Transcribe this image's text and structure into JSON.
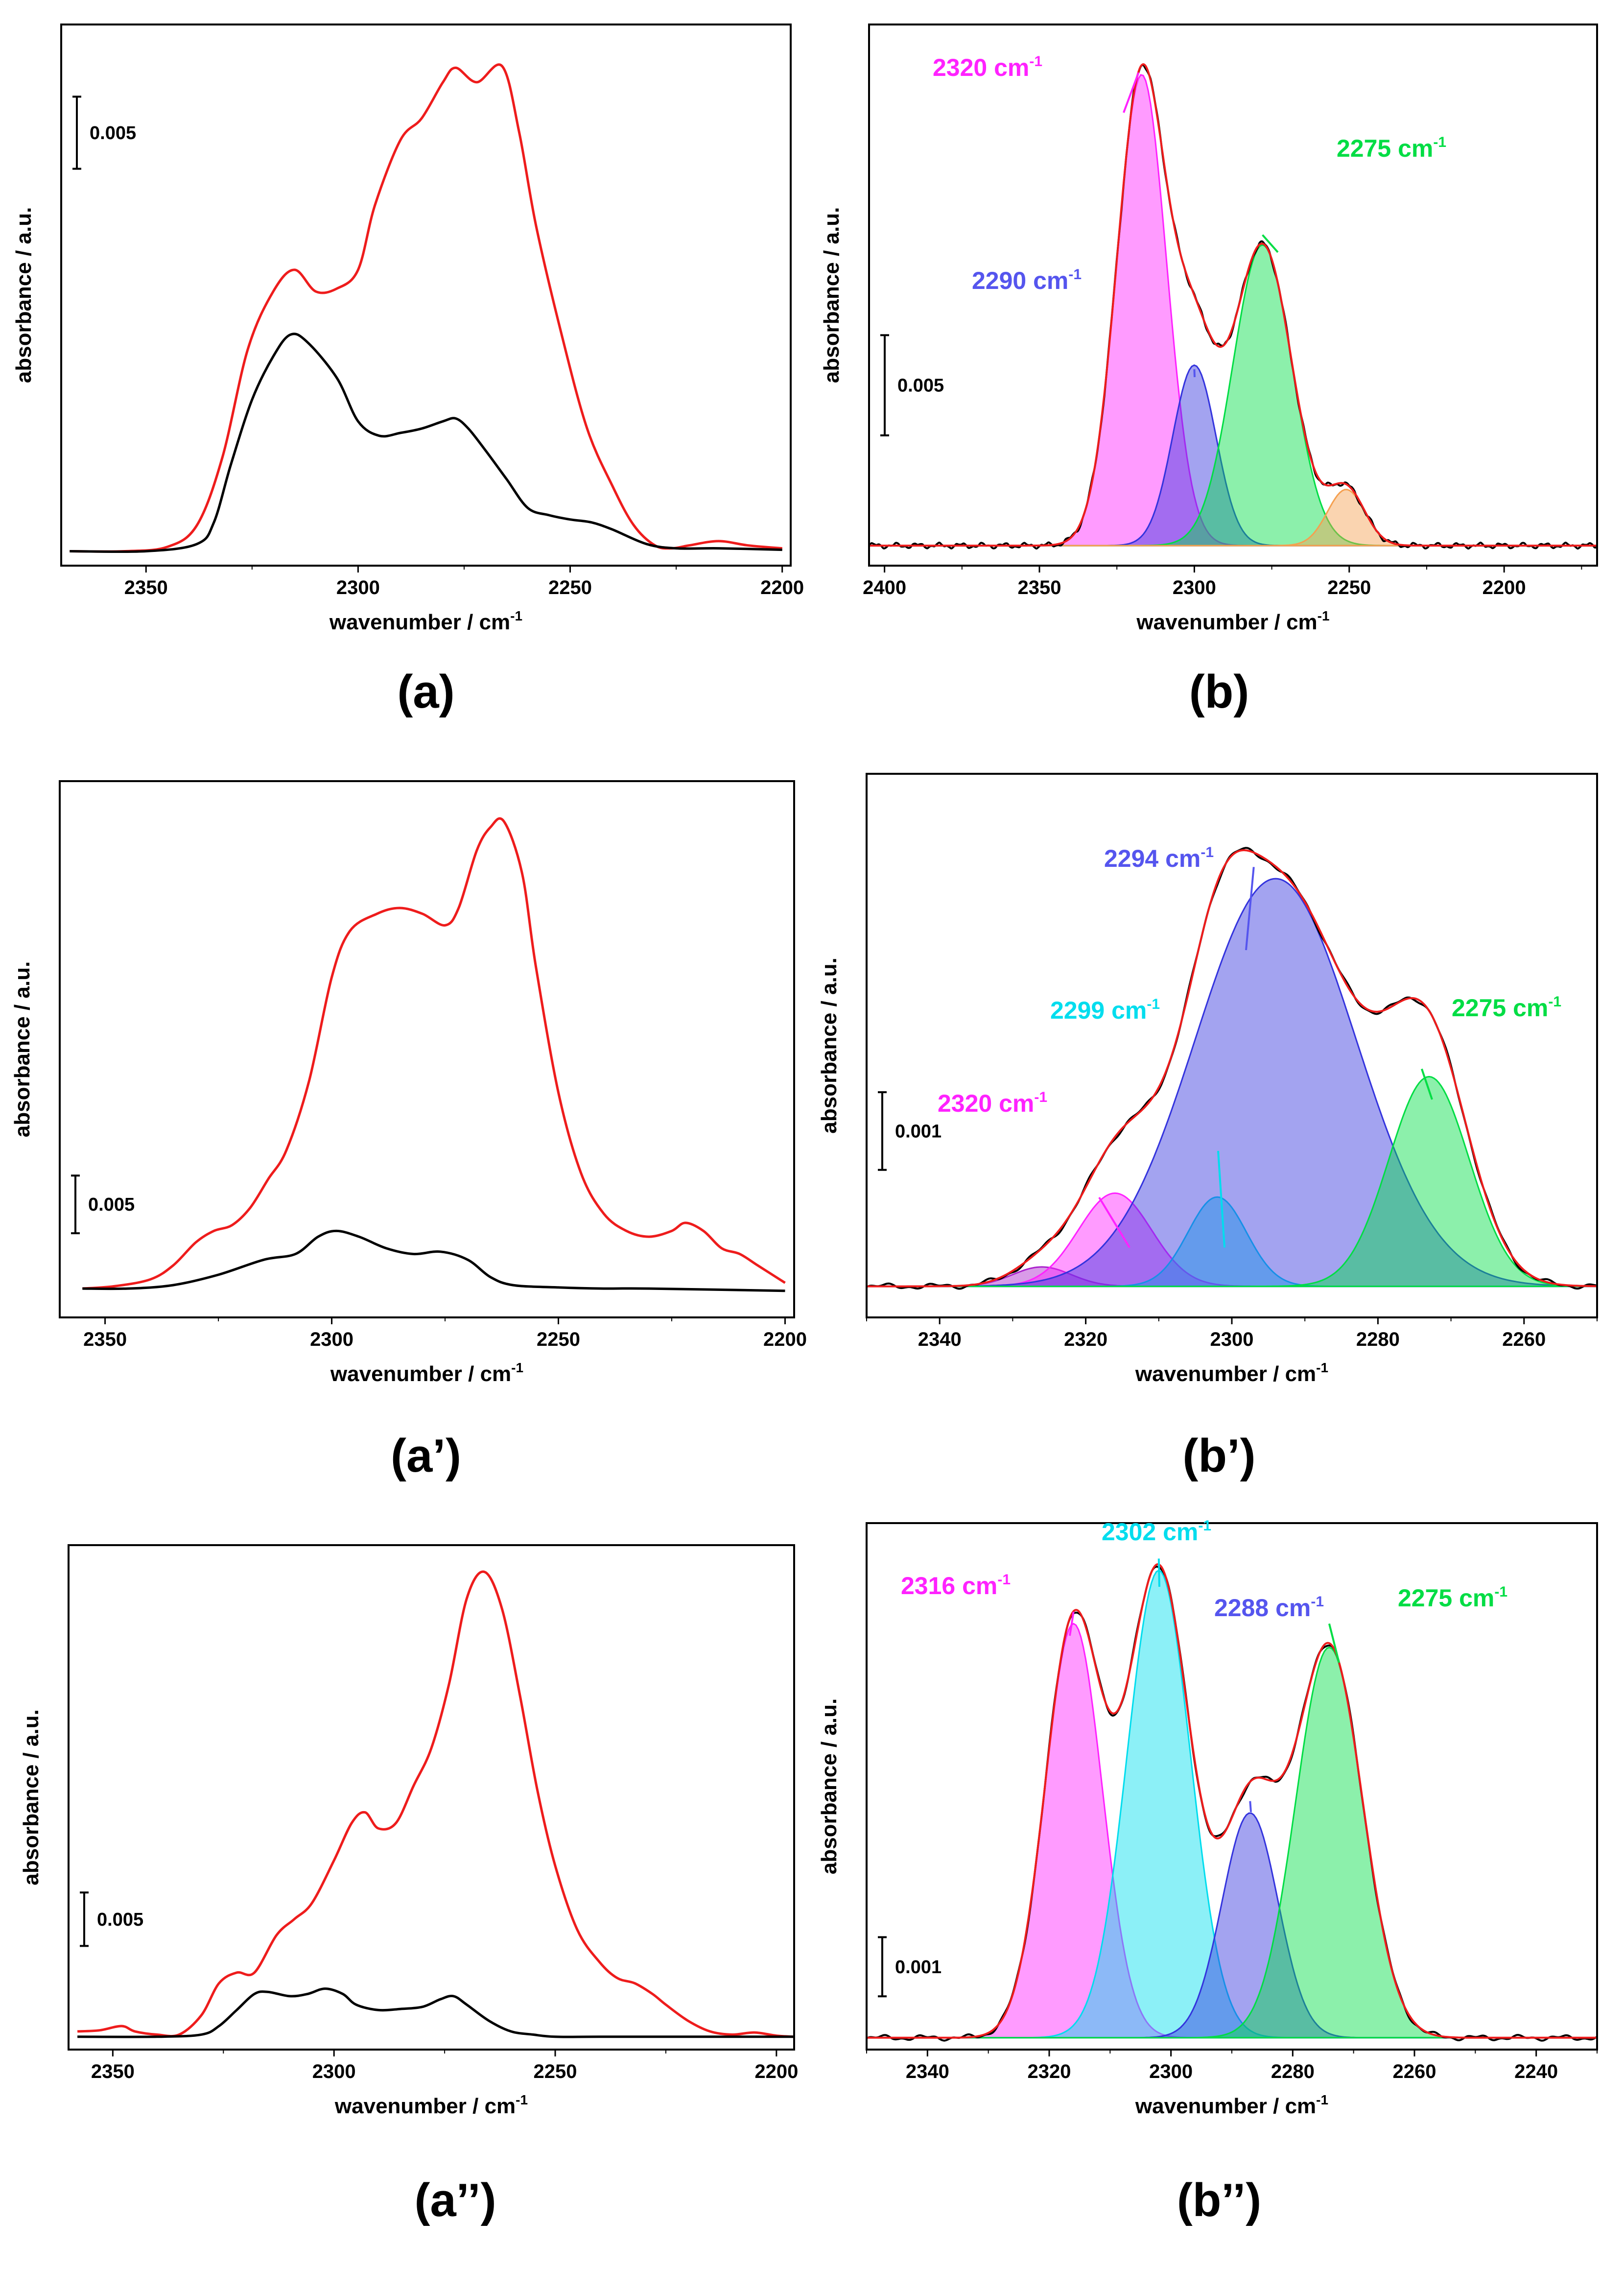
{
  "figure": {
    "colors": {
      "red": "#ee1c1c",
      "black": "#000000",
      "magenta": "#ff22ff",
      "blue": "#3333dd",
      "green": "#00dd44",
      "cyan": "#00ddee",
      "orange": "#f5a050"
    }
  },
  "chart_data": [
    {
      "id": "a",
      "type": "line",
      "label": "(a)",
      "xlabel": "wavenumber / cm",
      "xlabel_sup": "-1",
      "ylabel": "absorbance / a.u.",
      "xlim": [
        2370,
        2198
      ],
      "ylim": [
        -0.001,
        0.0365
      ],
      "xticks": [
        2350,
        2300,
        2250,
        2200
      ],
      "scale_bar": {
        "value": 0.005,
        "label": "0.005",
        "y0": 0.0265
      },
      "series": [
        {
          "name": "red",
          "color": "#ee1c1c",
          "x": [
            2368,
            2355,
            2345,
            2338,
            2332,
            2326,
            2320,
            2315,
            2310,
            2305,
            2300,
            2296,
            2290,
            2285,
            2280,
            2277,
            2272,
            2266,
            2262,
            2258,
            2252,
            2246,
            2240,
            2235,
            2230,
            2226,
            2222,
            2215,
            2208,
            2200
          ],
          "y": [
            0.0,
            0.0,
            0.0003,
            0.0018,
            0.0065,
            0.014,
            0.018,
            0.0195,
            0.018,
            0.0182,
            0.0195,
            0.024,
            0.0285,
            0.03,
            0.0325,
            0.0335,
            0.0325,
            0.0336,
            0.029,
            0.0225,
            0.015,
            0.0085,
            0.0045,
            0.0018,
            0.0004,
            0.0002,
            0.0004,
            0.0007,
            0.0004,
            0.0002
          ]
        },
        {
          "name": "black",
          "color": "#000000",
          "x": [
            2368,
            2350,
            2338,
            2334,
            2330,
            2325,
            2320,
            2316,
            2312,
            2305,
            2300,
            2295,
            2290,
            2285,
            2280,
            2277,
            2274,
            2270,
            2265,
            2260,
            2255,
            2250,
            2245,
            2240,
            2232,
            2225,
            2215,
            2200
          ],
          "y": [
            0.0,
            0.0,
            0.0005,
            0.002,
            0.006,
            0.0105,
            0.0135,
            0.015,
            0.0145,
            0.012,
            0.009,
            0.008,
            0.0082,
            0.0085,
            0.009,
            0.0092,
            0.0085,
            0.007,
            0.005,
            0.003,
            0.0025,
            0.0022,
            0.002,
            0.0015,
            0.0005,
            0.0002,
            0.0002,
            0.0001
          ]
        }
      ]
    },
    {
      "id": "b",
      "type": "area",
      "label": "(b)",
      "xlabel": "wavenumber / cm",
      "xlabel_sup": "-1",
      "ylabel": "absorbance / a.u.",
      "xlim": [
        2405,
        2170
      ],
      "ylim": [
        -0.001,
        0.026
      ],
      "xticks": [
        2400,
        2350,
        2300,
        2250,
        2200
      ],
      "scale_bar": {
        "value": 0.005,
        "label": "0.005",
        "y0": 0.0055
      },
      "components": [
        {
          "name": "2320",
          "center": 2317,
          "amplitude": 0.0235,
          "sigma": 8.0,
          "color": "#ff22ff"
        },
        {
          "name": "2290",
          "center": 2300,
          "amplitude": 0.009,
          "sigma": 7.0,
          "color": "#3333dd"
        },
        {
          "name": "2275",
          "center": 2278,
          "amplitude": 0.015,
          "sigma": 9.5,
          "color": "#00dd44"
        },
        {
          "name": "2250",
          "center": 2251,
          "amplitude": 0.0028,
          "sigma": 6.0,
          "color": "#f5a050"
        }
      ],
      "series": [
        {
          "name": "fit envelope",
          "color": "#ee1c1c"
        },
        {
          "name": "experimental",
          "color": "#000000"
        }
      ],
      "annotations": [
        {
          "text": "2320 cm",
          "sup": "-1",
          "color": "#ff22ff",
          "target_x": 2318,
          "target_y": 0.0236
        },
        {
          "text": "2290 cm",
          "sup": "-1",
          "color": "#5555ee",
          "target_x": 2300,
          "target_y": 0.0088
        },
        {
          "text": "2275 cm",
          "sup": "-1",
          "color": "#00dd44",
          "target_x": 2278,
          "target_y": 0.0155
        }
      ]
    },
    {
      "id": "a1",
      "type": "line",
      "label": "(a’)",
      "xlabel": "wavenumber / cm",
      "xlabel_sup": "-1",
      "ylabel": "absorbance / a.u.",
      "xlim": [
        2360,
        2198
      ],
      "ylim": [
        -0.0025,
        0.044
      ],
      "xticks": [
        2350,
        2300,
        2250,
        2200
      ],
      "scale_bar": {
        "value": 0.005,
        "label": "0.005",
        "y0": 0.0048
      },
      "series": [
        {
          "name": "red",
          "color": "#ee1c1c",
          "x": [
            2355,
            2348,
            2340,
            2335,
            2330,
            2326,
            2322,
            2318,
            2314,
            2310,
            2305,
            2300,
            2296,
            2290,
            2285,
            2280,
            2275,
            2272,
            2268,
            2265,
            2262,
            2258,
            2255,
            2250,
            2245,
            2240,
            2235,
            2230,
            2225,
            2222,
            2218,
            2214,
            2210,
            2206,
            2200
          ],
          "y": [
            0.0,
            0.0002,
            0.0008,
            0.002,
            0.004,
            0.005,
            0.0055,
            0.007,
            0.0095,
            0.012,
            0.018,
            0.027,
            0.031,
            0.0325,
            0.033,
            0.0325,
            0.0315,
            0.033,
            0.038,
            0.04,
            0.0405,
            0.036,
            0.028,
            0.017,
            0.01,
            0.0065,
            0.005,
            0.0045,
            0.005,
            0.0057,
            0.005,
            0.0035,
            0.003,
            0.002,
            0.0005
          ]
        },
        {
          "name": "black",
          "color": "#000000",
          "x": [
            2355,
            2345,
            2335,
            2325,
            2315,
            2308,
            2303,
            2299,
            2294,
            2288,
            2282,
            2276,
            2270,
            2265,
            2260,
            2250,
            2240,
            2230,
            2200
          ],
          "y": [
            0.0,
            0.0,
            0.0003,
            0.0012,
            0.0025,
            0.003,
            0.0045,
            0.005,
            0.0045,
            0.0035,
            0.003,
            0.0032,
            0.0025,
            0.001,
            0.0003,
            0.0001,
            0.0,
            0.0,
            -0.0002
          ]
        }
      ]
    },
    {
      "id": "b1",
      "type": "area",
      "label": "(b’)",
      "xlabel": "wavenumber / cm",
      "xlabel_sup": "-1",
      "ylabel": "absorbance / a.u.",
      "xlim": [
        2350,
        2250
      ],
      "ylim": [
        -0.0004,
        0.0066
      ],
      "xticks": [
        2340,
        2320,
        2300,
        2280,
        2260
      ],
      "scale_bar": {
        "value": 0.001,
        "label": "0.001",
        "y0": 0.0015
      },
      "components": [
        {
          "name": "2326",
          "center": 2326,
          "amplitude": 0.00025,
          "sigma": 4.0,
          "color": "#aa22cc"
        },
        {
          "name": "2320",
          "center": 2316,
          "amplitude": 0.0012,
          "sigma": 5.0,
          "color": "#ff22ff"
        },
        {
          "name": "2299",
          "center": 2302,
          "amplitude": 0.00115,
          "sigma": 4.0,
          "color": "#00ddee"
        },
        {
          "name": "2294",
          "center": 2294,
          "amplitude": 0.00525,
          "sigma": 11.0,
          "color": "#3333dd"
        },
        {
          "name": "2275",
          "center": 2273,
          "amplitude": 0.0027,
          "sigma": 5.5,
          "color": "#00dd44"
        }
      ],
      "series": [
        {
          "name": "fit envelope",
          "color": "#ee1c1c"
        },
        {
          "name": "experimental",
          "color": "#000000"
        }
      ],
      "annotations": [
        {
          "text": "2294 cm",
          "sup": "-1",
          "color": "#5555ee",
          "target_x": 2297,
          "target_y": 0.0054
        },
        {
          "text": "2299 cm",
          "sup": "-1",
          "color": "#00ddee",
          "target_x": 2301,
          "target_y": 0.0005
        },
        {
          "text": "2320 cm",
          "sup": "-1",
          "color": "#ff22ff",
          "target_x": 2314,
          "target_y": 0.0005
        },
        {
          "text": "2275 cm",
          "sup": "-1",
          "color": "#00dd44",
          "target_x": 2274,
          "target_y": 0.0028
        }
      ]
    },
    {
      "id": "a2",
      "type": "line",
      "label": "(a’’)",
      "xlabel": "wavenumber / cm",
      "xlabel_sup": "-1",
      "ylabel": "absorbance / a.u.",
      "xlim": [
        2360,
        2196
      ],
      "ylim": [
        -0.0012,
        0.046
      ],
      "xticks": [
        2350,
        2300,
        2250,
        2200
      ],
      "scale_bar": {
        "value": 0.005,
        "label": "0.005",
        "y0": 0.0085
      },
      "series": [
        {
          "name": "red",
          "color": "#ee1c1c",
          "x": [
            2358,
            2353,
            2348,
            2345,
            2340,
            2335,
            2330,
            2326,
            2322,
            2318,
            2313,
            2309,
            2305,
            2300,
            2296,
            2293,
            2290,
            2286,
            2282,
            2278,
            2274,
            2270,
            2266,
            2262,
            2258,
            2254,
            2250,
            2245,
            2240,
            2236,
            2232,
            2228,
            2225,
            2220,
            2215,
            2210,
            2205,
            2200,
            2196
          ],
          "y": [
            0.0005,
            0.0006,
            0.001,
            0.0005,
            0.0002,
            0.0002,
            0.002,
            0.005,
            0.006,
            0.006,
            0.0095,
            0.011,
            0.0125,
            0.0165,
            0.02,
            0.021,
            0.0195,
            0.02,
            0.0235,
            0.027,
            0.033,
            0.041,
            0.0435,
            0.04,
            0.032,
            0.023,
            0.016,
            0.01,
            0.007,
            0.0055,
            0.005,
            0.004,
            0.003,
            0.0015,
            0.0005,
            0.0002,
            0.0004,
            0.0001,
            0.0
          ]
        },
        {
          "name": "black",
          "color": "#000000",
          "x": [
            2358,
            2340,
            2330,
            2326,
            2322,
            2318,
            2315,
            2310,
            2306,
            2302,
            2298,
            2295,
            2290,
            2285,
            2280,
            2276,
            2273,
            2270,
            2265,
            2260,
            2255,
            2250,
            2240,
            2220,
            2196
          ],
          "y": [
            0.0,
            0.0,
            0.0002,
            0.001,
            0.0025,
            0.004,
            0.0042,
            0.0038,
            0.004,
            0.0045,
            0.004,
            0.003,
            0.0025,
            0.0026,
            0.0028,
            0.0035,
            0.0038,
            0.003,
            0.0015,
            0.0005,
            0.0002,
            0.0,
            0.0,
            0.0,
            0.0
          ]
        }
      ]
    },
    {
      "id": "b2",
      "type": "area",
      "label": "(b’’)",
      "xlabel": "wavenumber / cm",
      "xlabel_sup": "-1",
      "ylabel": "absorbance / a.u.",
      "xlim": [
        2350,
        2230
      ],
      "ylim": [
        -0.0002,
        0.0087
      ],
      "xticks": [
        2340,
        2320,
        2300,
        2280,
        2260,
        2240
      ],
      "scale_bar": {
        "value": 0.001,
        "label": "0.001",
        "y0": 0.0007
      },
      "components": [
        {
          "name": "2316",
          "center": 2316,
          "amplitude": 0.007,
          "sigma": 4.7,
          "color": "#ff22ff"
        },
        {
          "name": "2302",
          "center": 2302,
          "amplitude": 0.0079,
          "sigma": 5.2,
          "color": "#00ddee"
        },
        {
          "name": "2288",
          "center": 2287,
          "amplitude": 0.0038,
          "sigma": 4.6,
          "color": "#3333dd"
        },
        {
          "name": "2275",
          "center": 2274,
          "amplitude": 0.0066,
          "sigma": 5.5,
          "color": "#00dd44"
        }
      ],
      "series": [
        {
          "name": "fit envelope",
          "color": "#ee1c1c"
        },
        {
          "name": "experimental",
          "color": "#000000"
        }
      ],
      "annotations": [
        {
          "text": "2316 cm",
          "sup": "-1",
          "color": "#ff22ff",
          "target_x": 2316,
          "target_y": 0.0072
        },
        {
          "text": "2302 cm",
          "sup": "-1",
          "color": "#00ddee",
          "target_x": 2302,
          "target_y": 0.0081
        },
        {
          "text": "2288 cm",
          "sup": "-1",
          "color": "#5555ee",
          "target_x": 2287,
          "target_y": 0.004
        },
        {
          "text": "2275 cm",
          "sup": "-1",
          "color": "#00dd44",
          "target_x": 2274,
          "target_y": 0.007
        }
      ]
    }
  ]
}
